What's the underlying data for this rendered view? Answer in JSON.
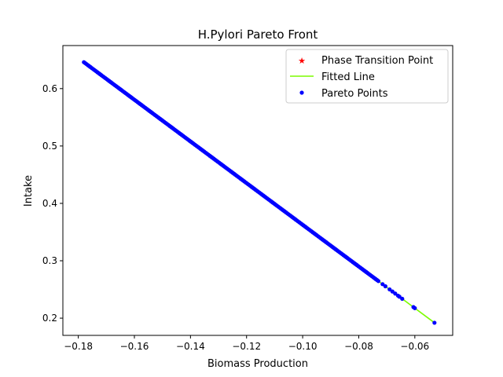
{
  "chart_data": {
    "type": "scatter",
    "title": "H.Pylori Pareto Front",
    "xlabel": "Biomass Production",
    "ylabel": "Intake",
    "xlim": [
      -0.1855,
      -0.0465
    ],
    "ylim": [
      0.17,
      0.675
    ],
    "xticks": [
      -0.18,
      -0.16,
      -0.14,
      -0.12,
      -0.1,
      -0.08,
      -0.06
    ],
    "xtick_labels": [
      "−0.18",
      "−0.16",
      "−0.14",
      "−0.12",
      "−0.10",
      "−0.08",
      "−0.06"
    ],
    "yticks": [
      0.2,
      0.3,
      0.4,
      0.5,
      0.6
    ],
    "ytick_labels": [
      "0.2",
      "0.3",
      "0.4",
      "0.5",
      "0.6"
    ],
    "legend_position": "top-right",
    "legend": [
      {
        "label": "Phase Transition Point",
        "marker": "star",
        "color": "#ff0000"
      },
      {
        "label": "Fitted Line",
        "marker": "line",
        "color": "#7cfc00"
      },
      {
        "label": "Pareto Points",
        "marker": "dot",
        "color": "#0000ff"
      }
    ],
    "fitted_line": {
      "x": [
        -0.178,
        -0.053
      ],
      "y": [
        0.646,
        0.192
      ]
    },
    "pareto_points": {
      "x_start": -0.178,
      "x_end": -0.0735,
      "count": 220,
      "extra_x": [
        -0.073,
        -0.0715,
        -0.0705,
        -0.069,
        -0.068,
        -0.067,
        -0.066,
        -0.0655,
        -0.0645,
        -0.0605,
        -0.06,
        -0.053
      ]
    },
    "phase_transition_point": []
  }
}
